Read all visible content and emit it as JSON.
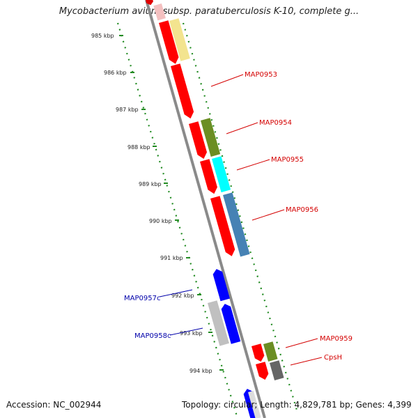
{
  "title": "Mycobacterium avium subsp. paratuberculosis K-10, complete g...",
  "footer": {
    "accession": "Accession: NC_002944",
    "topology": "Topology: circular; Length: 4,829,781 bp; Genes: 4,399"
  },
  "colors": {
    "forward_label": "#d40000",
    "reverse_label": "#0000aa",
    "backbone": "#888888",
    "tick": "#228b22"
  },
  "scale_ticks": [
    "985 kbp",
    "986 kbp",
    "987 kbp",
    "988 kbp",
    "989 kbp",
    "990 kbp",
    "991 kbp",
    "992 kbp",
    "993 kbp",
    "994 kbp"
  ],
  "gene_labels": [
    {
      "text": "MAP0953",
      "strand": "forward"
    },
    {
      "text": "MAP0954",
      "strand": "forward"
    },
    {
      "text": "MAP0955",
      "strand": "forward"
    },
    {
      "text": "MAP0956",
      "strand": "forward"
    },
    {
      "text": "MAP0957c",
      "strand": "reverse"
    },
    {
      "text": "MAP0958c",
      "strand": "reverse"
    },
    {
      "text": "MAP0959",
      "strand": "forward"
    },
    {
      "text": "CpsH",
      "strand": "forward"
    }
  ]
}
